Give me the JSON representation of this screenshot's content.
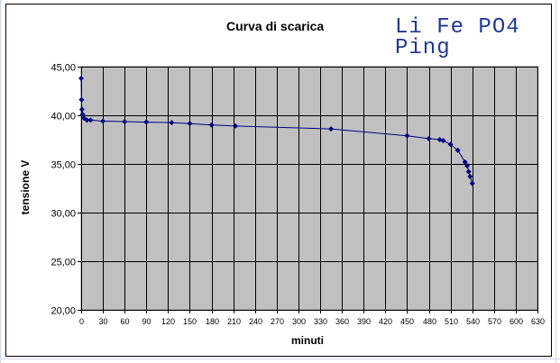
{
  "chart_data": {
    "type": "line",
    "title": "Curva di scarica",
    "annotation_lines": [
      "Li Fe PO4",
      "Ping"
    ],
    "xlabel": "minuti",
    "ylabel": "tensione V",
    "xlim": [
      0,
      630
    ],
    "ylim": [
      20,
      45
    ],
    "x_ticks": [
      "0",
      "30",
      "60",
      "90",
      "120",
      "150",
      "180",
      "210",
      "240",
      "270",
      "300",
      "330",
      "360",
      "390",
      "420",
      "450",
      "480",
      "510",
      "540",
      "570",
      "600",
      "630"
    ],
    "y_ticks": [
      "20,00",
      "25,00",
      "30,00",
      "35,00",
      "40,00",
      "45,00"
    ],
    "grid": true,
    "series": [
      {
        "x": [
          0,
          0.5,
          1,
          2,
          4,
          8,
          13,
          30,
          60,
          90,
          125,
          150,
          180,
          213,
          345,
          450,
          480,
          495,
          500,
          510,
          520,
          530,
          533,
          535,
          537,
          540
        ],
        "y": [
          43.8,
          41.6,
          40.6,
          40.1,
          39.7,
          39.5,
          39.5,
          39.4,
          39.35,
          39.3,
          39.25,
          39.15,
          39.0,
          38.9,
          38.6,
          37.9,
          37.6,
          37.5,
          37.4,
          37.0,
          36.4,
          35.2,
          34.8,
          34.2,
          33.7,
          33.0
        ]
      }
    ]
  },
  "colors": {
    "plot_bg": "#c0c0c0",
    "series": "#000080",
    "grid": "#000000"
  }
}
